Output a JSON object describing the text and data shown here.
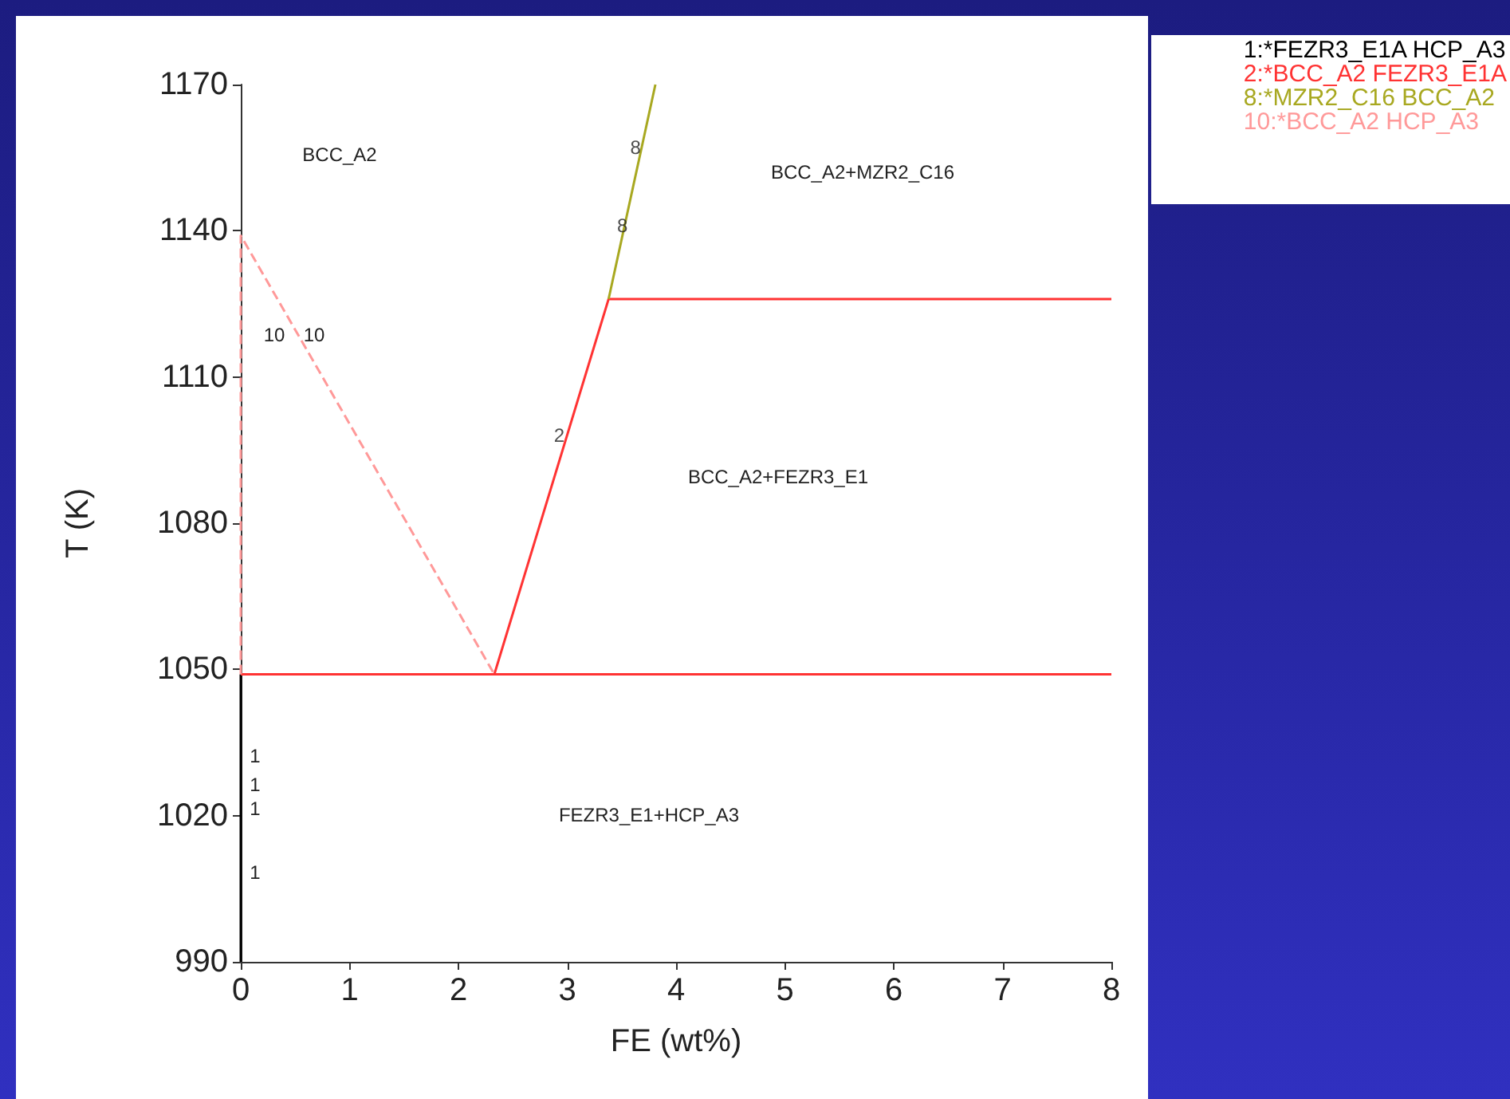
{
  "chart_data": {
    "type": "line",
    "xlabel": "FE (wt%)",
    "ylabel": "T (K)",
    "xlim": [
      0,
      8
    ],
    "xticks": [
      0,
      1,
      2,
      3,
      4,
      5,
      6,
      7,
      8
    ],
    "ylim": [
      990,
      1170
    ],
    "yticks": [
      990,
      1020,
      1050,
      1080,
      1110,
      1140,
      1170
    ],
    "grid": false,
    "legend": "top right",
    "marker": "none",
    "series": [
      {
        "name": "1:*FEZR3_E1A HCP_A3",
        "color": "#000000",
        "x": [
          0,
          0
        ],
        "values": [
          990,
          1049
        ],
        "line_style": "solid"
      },
      {
        "name": "2:*BCC_A2 FEZR3_E1A",
        "color": "#ff3333",
        "x": [
          0,
          8,
          null,
          2.33,
          3.38,
          8
        ],
        "values": [
          1049,
          1049,
          null,
          1049,
          1126,
          1126
        ],
        "line_style": "solid"
      },
      {
        "name": "8:*MZR2_C16 BCC_A2",
        "color": "#a8a820",
        "x": [
          3.38,
          3.81
        ],
        "values": [
          1126,
          1170
        ],
        "line_style": "solid"
      },
      {
        "name": "10:*BCC_A2 HCP_A3",
        "color": "#ff9999",
        "x": [
          0,
          0,
          2.33
        ],
        "values": [
          1049,
          1139,
          1049
        ],
        "line_style": "dashed"
      }
    ],
    "annotations": [
      "BCC_A2",
      "BCC_A2+MZR2_C16",
      "BCC_A2+FEZR3_E1",
      "FEZR3_E1+HCP_A3",
      "10",
      "10",
      {
        "text": "2",
        "x": 3.02,
        "y": 1098
      },
      {
        "text": "8",
        "x": 3.72,
        "y": 1157
      },
      {
        "text": "8",
        "x": 3.6,
        "y": 1141
      },
      "1",
      "1",
      "1",
      "1"
    ]
  }
}
